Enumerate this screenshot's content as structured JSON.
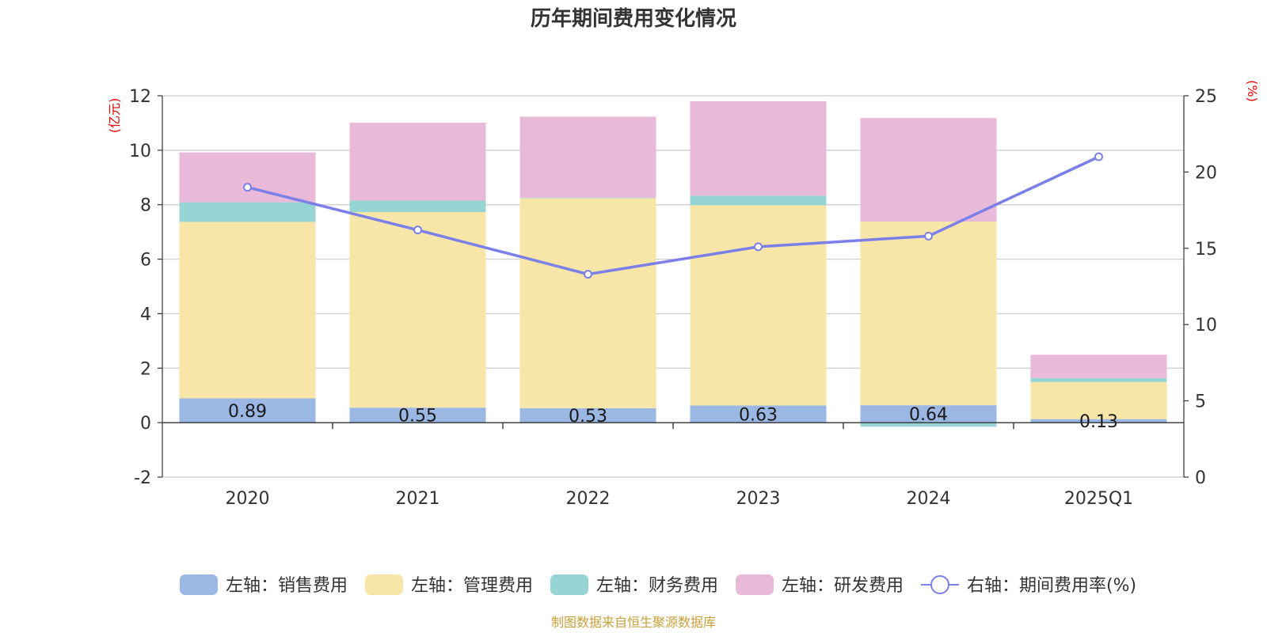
{
  "chart_data": {
    "type": "bar",
    "title": "历年期间费用变化情况",
    "categories": [
      "2020",
      "2021",
      "2022",
      "2023",
      "2024",
      "2025Q1"
    ],
    "stacked": true,
    "left_axis": {
      "unit": "(亿元)",
      "ylim": [
        -2,
        12
      ],
      "ticks": [
        "-2",
        "0",
        "2",
        "4",
        "6",
        "8",
        "10",
        "12"
      ]
    },
    "right_axis": {
      "unit": "(%)",
      "ylim": [
        0,
        25
      ],
      "ticks": [
        "0",
        "5",
        "10",
        "15",
        "20",
        "25"
      ]
    },
    "series": [
      {
        "name": "左轴：销售费用",
        "type": "bar",
        "axis": "left",
        "color": "#9bb7e3",
        "values": [
          0.89,
          0.55,
          0.53,
          0.63,
          0.64,
          0.13
        ],
        "labels": [
          "0.89",
          "0.55",
          "0.53",
          "0.63",
          "0.64",
          "0.13"
        ]
      },
      {
        "name": "左轴：管理费用",
        "type": "bar",
        "axis": "left",
        "color": "#f7e6a8",
        "values": [
          6.48,
          7.18,
          7.71,
          7.35,
          6.74,
          1.36
        ]
      },
      {
        "name": "左轴：财务费用",
        "type": "bar",
        "axis": "left",
        "color": "#97d4d4",
        "values": [
          0.72,
          0.42,
          0.02,
          0.35,
          -0.15,
          0.15
        ]
      },
      {
        "name": "左轴：研发费用",
        "type": "bar",
        "axis": "left",
        "color": "#e8b9d9",
        "values": [
          1.83,
          2.86,
          2.97,
          3.47,
          3.8,
          0.85
        ]
      },
      {
        "name": "右轴：期间费用率(%)",
        "type": "line",
        "axis": "right",
        "color": "#7b7fe8",
        "values": [
          19.0,
          16.2,
          13.3,
          15.1,
          15.8,
          21.0
        ]
      }
    ],
    "grid": true,
    "legend_position": "bottom"
  },
  "footer": {
    "source": "制图数据来自恒生聚源数据库"
  }
}
